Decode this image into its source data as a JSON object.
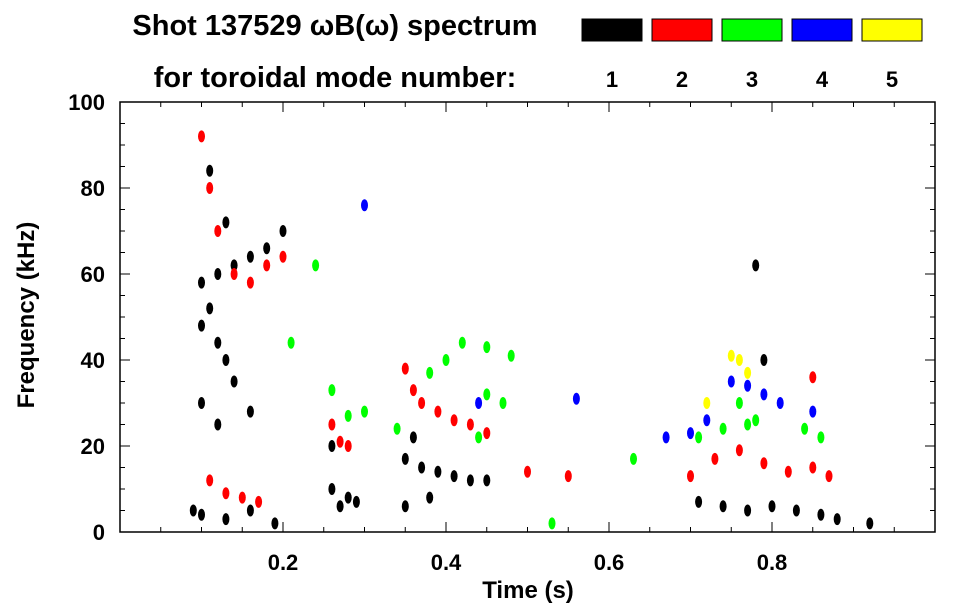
{
  "chart_data": {
    "type": "scatter",
    "title_line1": "Shot 137529 ωB(ω) spectrum",
    "title_line2": "for toroidal mode number:",
    "xlabel": "Time (s)",
    "ylabel": "Frequency (kHz)",
    "xlim": [
      0.0,
      1.0
    ],
    "ylim": [
      0,
      100
    ],
    "xticks": [
      {
        "value": 0.2,
        "label": "0.2"
      },
      {
        "value": 0.4,
        "label": "0.4"
      },
      {
        "value": 0.6,
        "label": "0.6"
      },
      {
        "value": 0.8,
        "label": "0.8"
      }
    ],
    "yticks": [
      {
        "value": 0,
        "label": "0"
      },
      {
        "value": 20,
        "label": "20"
      },
      {
        "value": 40,
        "label": "40"
      },
      {
        "value": 60,
        "label": "60"
      },
      {
        "value": 80,
        "label": "80"
      },
      {
        "value": 100,
        "label": "100"
      }
    ],
    "legend": [
      {
        "label": "1",
        "color": "#000000"
      },
      {
        "label": "2",
        "color": "#ff0000"
      },
      {
        "label": "3",
        "color": "#00ff00"
      },
      {
        "label": "4",
        "color": "#0000ff"
      },
      {
        "label": "5",
        "color": "#ffff00"
      }
    ],
    "series": [
      {
        "mode": "1",
        "color": "#000000",
        "points": [
          [
            0.09,
            5
          ],
          [
            0.1,
            48
          ],
          [
            0.11,
            52
          ],
          [
            0.12,
            44
          ],
          [
            0.13,
            40
          ],
          [
            0.1,
            58
          ],
          [
            0.12,
            60
          ],
          [
            0.14,
            62
          ],
          [
            0.16,
            64
          ],
          [
            0.18,
            66
          ],
          [
            0.2,
            70
          ],
          [
            0.1,
            30
          ],
          [
            0.12,
            25
          ],
          [
            0.14,
            35
          ],
          [
            0.16,
            28
          ],
          [
            0.11,
            84
          ],
          [
            0.13,
            72
          ],
          [
            0.1,
            4
          ],
          [
            0.13,
            3
          ],
          [
            0.16,
            5
          ],
          [
            0.19,
            2
          ],
          [
            0.26,
            10
          ],
          [
            0.27,
            6
          ],
          [
            0.28,
            8
          ],
          [
            0.29,
            7
          ],
          [
            0.26,
            20
          ],
          [
            0.35,
            17
          ],
          [
            0.37,
            15
          ],
          [
            0.39,
            14
          ],
          [
            0.41,
            13
          ],
          [
            0.43,
            12
          ],
          [
            0.45,
            12
          ],
          [
            0.36,
            22
          ],
          [
            0.38,
            8
          ],
          [
            0.35,
            6
          ],
          [
            0.71,
            7
          ],
          [
            0.74,
            6
          ],
          [
            0.77,
            5
          ],
          [
            0.8,
            6
          ],
          [
            0.83,
            5
          ],
          [
            0.86,
            4
          ],
          [
            0.88,
            3
          ],
          [
            0.92,
            2
          ],
          [
            0.78,
            62
          ],
          [
            0.79,
            40
          ]
        ]
      },
      {
        "mode": "2",
        "color": "#ff0000",
        "points": [
          [
            0.1,
            92
          ],
          [
            0.11,
            80
          ],
          [
            0.12,
            70
          ],
          [
            0.14,
            60
          ],
          [
            0.16,
            58
          ],
          [
            0.18,
            62
          ],
          [
            0.2,
            64
          ],
          [
            0.11,
            12
          ],
          [
            0.13,
            9
          ],
          [
            0.15,
            8
          ],
          [
            0.17,
            7
          ],
          [
            0.26,
            25
          ],
          [
            0.27,
            21
          ],
          [
            0.28,
            20
          ],
          [
            0.35,
            38
          ],
          [
            0.36,
            33
          ],
          [
            0.37,
            30
          ],
          [
            0.39,
            28
          ],
          [
            0.41,
            26
          ],
          [
            0.43,
            25
          ],
          [
            0.45,
            23
          ],
          [
            0.5,
            14
          ],
          [
            0.55,
            13
          ],
          [
            0.7,
            13
          ],
          [
            0.73,
            17
          ],
          [
            0.76,
            19
          ],
          [
            0.79,
            16
          ],
          [
            0.82,
            14
          ],
          [
            0.85,
            15
          ],
          [
            0.87,
            13
          ],
          [
            0.85,
            36
          ]
        ]
      },
      {
        "mode": "3",
        "color": "#00ff00",
        "points": [
          [
            0.24,
            62
          ],
          [
            0.21,
            44
          ],
          [
            0.26,
            33
          ],
          [
            0.28,
            27
          ],
          [
            0.3,
            28
          ],
          [
            0.34,
            24
          ],
          [
            0.38,
            37
          ],
          [
            0.4,
            40
          ],
          [
            0.42,
            44
          ],
          [
            0.45,
            43
          ],
          [
            0.48,
            41
          ],
          [
            0.45,
            32
          ],
          [
            0.47,
            30
          ],
          [
            0.44,
            22
          ],
          [
            0.53,
            2
          ],
          [
            0.63,
            17
          ],
          [
            0.71,
            22
          ],
          [
            0.74,
            24
          ],
          [
            0.77,
            25
          ],
          [
            0.78,
            26
          ],
          [
            0.76,
            30
          ],
          [
            0.84,
            24
          ],
          [
            0.86,
            22
          ]
        ]
      },
      {
        "mode": "4",
        "color": "#0000ff",
        "points": [
          [
            0.3,
            76
          ],
          [
            0.44,
            30
          ],
          [
            0.56,
            31
          ],
          [
            0.67,
            22
          ],
          [
            0.7,
            23
          ],
          [
            0.72,
            26
          ],
          [
            0.75,
            35
          ],
          [
            0.77,
            34
          ],
          [
            0.79,
            32
          ],
          [
            0.81,
            30
          ],
          [
            0.85,
            28
          ]
        ]
      },
      {
        "mode": "5",
        "color": "#ffff00",
        "points": [
          [
            0.72,
            30
          ],
          [
            0.75,
            41
          ],
          [
            0.76,
            40
          ],
          [
            0.77,
            37
          ]
        ]
      }
    ]
  }
}
